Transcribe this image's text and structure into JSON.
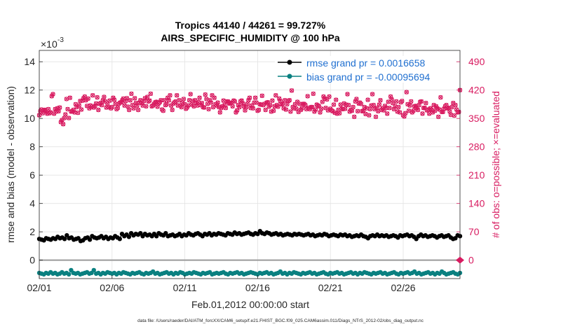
{
  "chart_data": {
    "type": "scatter",
    "title_line1": "Tropics 44140 / 44261 = 99.727%",
    "title_line2": "AIRS_SPECIFIC_HUMIDITY @ 100 hPa",
    "xlabel": "Feb.01,2012 00:00:00 start",
    "ylabel_left": "rmse and bias (model - observation)",
    "ylabel_right": "# of obs: o=possible; ×=evaluated",
    "left_exponent": "×10",
    "left_exponent_power": "-3",
    "x_day_range": [
      1,
      29.9
    ],
    "ylim_left": [
      -1.3,
      14.8
    ],
    "ylim_right": [
      -45.5,
      518
    ],
    "x_tick_days": [
      1,
      6,
      11,
      16,
      21,
      26
    ],
    "x_tick_labels": [
      "02/01",
      "02/06",
      "02/11",
      "02/16",
      "02/21",
      "02/26"
    ],
    "y_left_ticks": [
      0,
      2,
      4,
      6,
      8,
      10,
      12,
      14
    ],
    "y_left_tick_labels": [
      "0",
      "2",
      "4",
      "6",
      "8",
      "10",
      "12",
      "14"
    ],
    "y_right_ticks": [
      0,
      70,
      140,
      210,
      280,
      350,
      420,
      490
    ],
    "y_right_tick_labels": [
      "0",
      "70",
      "140",
      "210",
      "280",
      "350",
      "420",
      "490"
    ],
    "colors": {
      "rmse": "#000000",
      "bias": "#0a8080",
      "obs": "#d81b60",
      "legend_text": "#1f6fd0"
    },
    "legend": [
      {
        "name": "rmse grand pr = 0.0016658",
        "marker": "dot",
        "color": "#000000"
      },
      {
        "name": "bias grand pr = -0.00095694",
        "marker": "dot",
        "color": "#0a8080"
      }
    ],
    "footer": "data file: /Users/raeder/DAI/ATM_forcXX/CAM6_setup/f.e21.FHIST_BGC.f09_025.CAM6assim.011/Diags_NTrS_2012-02/obs_diag_output.nc",
    "series": [
      {
        "name": "rmse",
        "axis": "left",
        "unit": "1e-3",
        "values": [
          1.5,
          1.45,
          1.4,
          1.55,
          1.5,
          1.45,
          1.55,
          1.5,
          1.65,
          1.55,
          1.6,
          1.5,
          1.75,
          1.55,
          1.6,
          1.45,
          1.5,
          1.55,
          1.35,
          1.4,
          1.55,
          1.6,
          1.45,
          1.7,
          1.6,
          1.55,
          1.6,
          1.7,
          1.55,
          1.65,
          1.5,
          1.6,
          1.55,
          1.7,
          1.6,
          1.5,
          1.85,
          1.7,
          1.8,
          1.65,
          1.9,
          1.75,
          1.85,
          1.8,
          1.9,
          1.7,
          1.85,
          1.75,
          1.8,
          1.7,
          1.85,
          1.7,
          1.9,
          1.8,
          1.75,
          1.9,
          1.7,
          1.75,
          1.8,
          1.7,
          1.75,
          1.85,
          1.7,
          1.8,
          1.75,
          1.9,
          1.8,
          1.75,
          1.85,
          1.9,
          1.8,
          1.7,
          1.85,
          1.8,
          1.9,
          1.75,
          1.85,
          1.8,
          1.9,
          1.85,
          1.8,
          1.75,
          1.9,
          1.85,
          1.8,
          1.95,
          1.85,
          1.9,
          1.8,
          1.85,
          1.9,
          1.95,
          1.85,
          1.8,
          1.9,
          1.85,
          2.05,
          1.9,
          1.85,
          1.95,
          1.9,
          1.8,
          1.85,
          1.9,
          1.8,
          1.85,
          1.75,
          1.8,
          1.85,
          1.8,
          1.75,
          1.85,
          1.8,
          1.85,
          1.8,
          1.75,
          1.8,
          1.85,
          1.75,
          1.8,
          1.7,
          1.75,
          1.8,
          1.75,
          1.85,
          1.8,
          1.7,
          1.75,
          1.8,
          1.75,
          1.7,
          1.8,
          1.75,
          1.8,
          1.7,
          1.75,
          1.65,
          1.7,
          1.75,
          1.7,
          1.8,
          1.7,
          1.65,
          1.55,
          1.7,
          1.75,
          1.7,
          1.8,
          1.7,
          1.75,
          1.7,
          1.75,
          1.65,
          1.7,
          1.75,
          1.7,
          1.6,
          1.75,
          1.7,
          1.75,
          1.8,
          1.7,
          1.75,
          1.65,
          1.5,
          1.7,
          1.8,
          1.7,
          1.75,
          1.65,
          1.7,
          1.75,
          1.7,
          1.6,
          1.7,
          1.75,
          1.65,
          1.7,
          1.75,
          1.6,
          1.5,
          1.55,
          1.75,
          1.7
        ]
      },
      {
        "name": "bias",
        "axis": "left",
        "unit": "1e-3",
        "values": [
          -0.9,
          -0.95,
          -1.0,
          -0.9,
          -0.95,
          -0.85,
          -0.95,
          -0.9,
          -1.0,
          -0.95,
          -0.85,
          -0.95,
          -0.9,
          -1.0,
          -0.7,
          -0.9,
          -0.95,
          -0.9,
          -1.0,
          -0.95,
          -0.9,
          -0.85,
          -0.95,
          -0.9,
          -0.7,
          -0.95,
          -0.9,
          -1.0,
          -0.9,
          -0.95,
          -0.85,
          -0.9,
          -0.95,
          -0.9,
          -1.0,
          -0.9,
          -0.95,
          -0.85,
          -0.9,
          -0.95,
          -1.0,
          -0.9,
          -0.95,
          -0.9,
          -0.85,
          -0.95,
          -1.0,
          -0.9,
          -0.95,
          -0.9,
          -0.8,
          -0.95,
          -0.9,
          -1.0,
          -0.95,
          -0.9,
          -0.85,
          -0.95,
          -0.9,
          -1.0,
          -0.9,
          -0.95,
          -0.85,
          -0.9,
          -1.0,
          -0.95,
          -0.9,
          -0.95,
          -0.85,
          -0.9,
          -0.95,
          -1.0,
          -0.9,
          -0.95,
          -0.9,
          -0.85,
          -1.0,
          -0.95,
          -0.9,
          -0.95,
          -0.9,
          -0.85,
          -0.95,
          -1.0,
          -0.9,
          -0.95,
          -0.9,
          -0.85,
          -0.95,
          -0.9,
          -1.0,
          -0.95,
          -0.9,
          -0.85,
          -0.9,
          -0.95,
          -1.0,
          -0.9,
          -0.95,
          -0.9,
          -0.85,
          -0.95,
          -0.9,
          -1.0,
          -0.95,
          -0.9,
          -0.8,
          -0.95,
          -0.9,
          -1.0,
          -0.9,
          -0.95,
          -0.85,
          -0.9,
          -0.95,
          -1.0,
          -0.9,
          -0.95,
          -0.9,
          -0.85,
          -0.95,
          -0.9,
          -1.0,
          -0.95,
          -0.9,
          -0.85,
          -0.95,
          -1.0,
          -0.9,
          -0.95,
          -0.9,
          -0.85,
          -0.95,
          -0.9,
          -1.0,
          -0.95,
          -0.9,
          -0.85,
          -0.95,
          -0.9,
          -1.0,
          -0.9,
          -0.95,
          -0.85,
          -0.9,
          -0.95,
          -1.0,
          -0.9,
          -0.95,
          -0.9,
          -0.85,
          -0.95,
          -0.9,
          -1.0,
          -0.95,
          -0.9,
          -0.85,
          -0.95,
          -1.0,
          -0.9,
          -0.95,
          -0.9,
          -0.85,
          -0.95,
          -0.9,
          -0.8,
          -0.95,
          -0.9,
          -1.0,
          -0.95,
          -0.9,
          -0.85,
          -0.95,
          -0.9,
          -1.0,
          -0.9,
          -0.95,
          -0.8,
          -0.9,
          -1.0,
          -0.95,
          -0.9,
          -0.85,
          -0.95,
          -1.0,
          -0.9
        ]
      },
      {
        "name": "obs_possible",
        "axis": "right",
        "values": [
          358,
          368,
          372,
          363,
          370,
          371,
          367,
          362,
          373,
          363,
          365,
          405,
          410,
          362,
          373,
          367,
          375,
          368,
          377,
          341,
          346,
          336,
          351,
          360,
          398,
          373,
          351,
          401,
          367,
          368,
          371,
          365,
          385,
          378,
          364,
          382,
          393,
          372,
          394,
          400,
          404,
          395,
          381,
          399,
          375,
          382,
          379,
          407,
          377,
          381,
          387,
          402,
          371,
          386,
          388,
          383,
          395,
          403,
          392,
          377,
          386,
          378,
          394,
          375,
          378,
          401,
          396,
          386,
          373,
          376,
          386,
          389,
          390,
          395,
          399,
          382,
          393,
          400,
          379,
          371,
          395,
          411,
          383,
          375,
          400,
          388,
          382,
          371,
          389,
          395,
          388,
          382,
          393,
          400,
          380,
          403,
          392,
          394,
          411,
          380,
          382,
          386,
          390,
          391,
          379,
          387,
          390,
          395,
          372,
          369,
          395,
          383,
          385,
          401,
          395,
          407,
          382,
          371,
          387,
          390,
          392,
          407,
          382,
          395,
          382,
          378,
          389,
          398,
          385,
          374,
          377,
          382,
          395,
          410,
          384,
          393,
          380,
          395,
          388,
          382,
          390,
          401,
          383,
          388,
          378,
          377,
          409,
          398,
          386,
          373,
          395,
          389,
          407,
          378,
          401,
          385,
          382,
          389,
          378,
          365,
          376,
          380,
          394,
          383,
          376,
          392,
          392,
          387,
          388,
          389,
          380,
          394,
          392,
          365,
          370,
          383,
          378,
          392,
          394,
          387,
          380,
          370,
          378,
          386,
          395,
          401,
          376,
          382,
          375,
          389,
          401,
          389,
          369,
          371,
          385,
          384,
          406,
          383,
          386,
          371,
          389,
          390,
          379,
          383,
          367,
          394,
          369,
          380,
          407,
          383,
          379,
          399,
          393,
          385,
          386,
          375,
          395,
          372,
          385,
          393,
          395,
          367,
          419,
          378,
          375,
          385,
          374,
          391,
          366,
          386,
          371,
          375,
          386,
          386,
          383,
          373,
          405,
          376,
          373,
          378,
          378,
          411,
          367,
          372,
          384,
          382,
          380,
          365,
          374,
          391,
          404,
          399,
          376,
          397,
          370,
          404,
          374,
          370,
          368,
          384,
          364,
          396,
          362,
          371,
          363,
          384,
          374,
          373,
          387,
          374,
          384,
          410,
          383,
          367,
          371,
          369,
          378,
          354,
          392,
          398,
          368,
          387,
          389,
          386,
          368,
          369,
          378,
          361,
          375,
          396,
          358,
          373,
          382,
          410,
          383,
          373,
          354,
          376,
          368,
          384,
          395,
          371,
          375,
          370,
          381,
          376,
          362,
          391,
          376,
          404,
          397,
          388,
          373,
          380,
          392,
          367,
          378,
          365,
          390,
          393,
          358,
          355,
          363,
          415,
          385,
          369,
          382,
          392,
          365,
          369,
          380,
          381,
          376,
          371,
          383,
          391,
          392,
          362,
          376,
          376,
          388,
          370,
          372,
          362,
          375,
          371,
          365,
          383,
          369,
          380,
          375,
          354,
          372,
          402,
          366,
          366,
          374,
          380,
          383,
          375,
          376,
          367,
          359,
          378,
          388,
          357,
          383,
          372,
          365,
          366,
          420
        ]
      }
    ]
  }
}
